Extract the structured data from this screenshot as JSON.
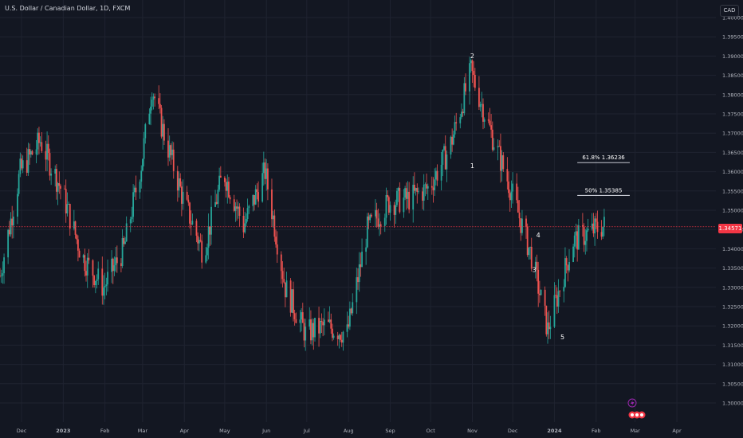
{
  "header": {
    "symbol_title": "U.S. Dollar / Canadian Dollar, 1D, FXCM",
    "currency_button": "CAD"
  },
  "current_price": "1.34571",
  "colors": {
    "background": "#131722",
    "up": "#26a69a",
    "down": "#ef5350",
    "grid": "#1f2330",
    "axis_text": "#b2b5be",
    "price_line": "#f23645",
    "badge": "#f23645",
    "annotation": "#ffffff"
  },
  "icons": [
    "lightning-icon",
    "events-icon"
  ],
  "chart_data": {
    "type": "candlestick",
    "y_axis": {
      "range": [
        1.295,
        1.405
      ],
      "tick_labels": [
        "1.40000",
        "1.39500",
        "1.39000",
        "1.38500",
        "1.38000",
        "1.37500",
        "1.37000",
        "1.36500",
        "1.36000",
        "1.35500",
        "1.35000",
        "1.34500",
        "1.34000",
        "1.33500",
        "1.33000",
        "1.32500",
        "1.32000",
        "1.31500",
        "1.31000",
        "1.30500",
        "1.30000"
      ]
    },
    "x_axis": {
      "tick_labels": [
        "Dec",
        "2023",
        "Feb",
        "Mar",
        "Apr",
        "May",
        "Jun",
        "Jul",
        "Aug",
        "Sep",
        "Oct",
        "Nov",
        "Dec",
        "2024",
        "Feb",
        "Mar",
        "Apr"
      ],
      "tick_dates": [
        "2022-12-01",
        "2023-01-01",
        "2023-02-01",
        "2023-03-01",
        "2023-04-01",
        "2023-05-01",
        "2023-06-01",
        "2023-07-01",
        "2023-08-01",
        "2023-09-01",
        "2023-10-01",
        "2023-11-01",
        "2023-12-01",
        "2024-01-01",
        "2024-02-01",
        "2024-03-01",
        "2024-04-01"
      ],
      "bold_labels": [
        "2023",
        "2024"
      ],
      "range": [
        "2022-11-15",
        "2024-04-30"
      ]
    },
    "grid": true,
    "price_anchors": [
      [
        "2022-11-15",
        1.333
      ],
      [
        "2022-11-30",
        1.36
      ],
      [
        "2022-12-15",
        1.368
      ],
      [
        "2022-12-31",
        1.355
      ],
      [
        "2023-01-15",
        1.338
      ],
      [
        "2023-01-31",
        1.33
      ],
      [
        "2023-02-15",
        1.34
      ],
      [
        "2023-02-28",
        1.362
      ],
      [
        "2023-03-08",
        1.382
      ],
      [
        "2023-03-15",
        1.372
      ],
      [
        "2023-03-31",
        1.353
      ],
      [
        "2023-04-15",
        1.339
      ],
      [
        "2023-04-30",
        1.36
      ],
      [
        "2023-05-15",
        1.346
      ],
      [
        "2023-05-31",
        1.36
      ],
      [
        "2023-06-15",
        1.33
      ],
      [
        "2023-06-30",
        1.318
      ],
      [
        "2023-07-15",
        1.32
      ],
      [
        "2023-07-31",
        1.318
      ],
      [
        "2023-08-15",
        1.345
      ],
      [
        "2023-08-31",
        1.352
      ],
      [
        "2023-09-15",
        1.353
      ],
      [
        "2023-09-30",
        1.356
      ],
      [
        "2023-10-15",
        1.366
      ],
      [
        "2023-10-31",
        1.386
      ],
      [
        "2023-11-15",
        1.37
      ],
      [
        "2023-11-30",
        1.355
      ],
      [
        "2023-12-15",
        1.338
      ],
      [
        "2023-12-27",
        1.319
      ],
      [
        "2024-01-15",
        1.342
      ],
      [
        "2024-01-31",
        1.345
      ],
      [
        "2024-02-07",
        1.346
      ]
    ],
    "current_price": 1.34571,
    "annotations": [
      {
        "label": "1",
        "date": "2023-11-01",
        "price": 1.361
      },
      {
        "label": "2",
        "date": "2023-11-01",
        "price": 1.3895
      },
      {
        "label": "3",
        "date": "2023-12-17",
        "price": 1.334
      },
      {
        "label": "4",
        "date": "2023-12-20",
        "price": 1.343
      },
      {
        "label": "5",
        "date": "2024-01-07",
        "price": 1.3165
      }
    ],
    "fib_levels": [
      {
        "label": "61.8%  1.36236",
        "price": 1.36236,
        "from": "2024-01-18",
        "to": "2024-02-26"
      },
      {
        "label": "50%  1.35385",
        "price": 1.35385,
        "from": "2024-01-18",
        "to": "2024-02-26"
      }
    ]
  }
}
